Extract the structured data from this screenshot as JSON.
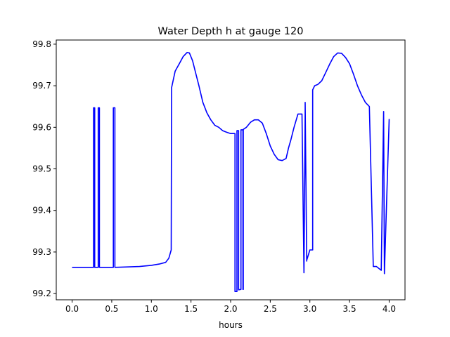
{
  "chart_data": {
    "type": "line",
    "title": "Water Depth h at gauge 120",
    "xlabel": "hours",
    "ylabel": "",
    "xlim": [
      -0.2,
      4.2
    ],
    "ylim": [
      99.185,
      99.81
    ],
    "xticks": [
      0.0,
      0.5,
      1.0,
      1.5,
      2.0,
      2.5,
      3.0,
      3.5,
      4.0
    ],
    "xtick_labels": [
      "0.0",
      "0.5",
      "1.0",
      "1.5",
      "2.0",
      "2.5",
      "3.0",
      "3.5",
      "4.0"
    ],
    "yticks": [
      99.2,
      99.3,
      99.4,
      99.5,
      99.6,
      99.7,
      99.8
    ],
    "ytick_labels": [
      "99.2",
      "99.3",
      "99.4",
      "99.5",
      "99.6",
      "99.7",
      "99.8"
    ],
    "grid": false,
    "series": [
      {
        "color": "#0000ff",
        "x": [
          0.0,
          0.27,
          0.27,
          0.285,
          0.285,
          0.33,
          0.33,
          0.345,
          0.345,
          0.52,
          0.52,
          0.54,
          0.54,
          0.7,
          0.85,
          1.0,
          1.1,
          1.18,
          1.22,
          1.25,
          1.255,
          1.3,
          1.35,
          1.4,
          1.45,
          1.48,
          1.52,
          1.56,
          1.6,
          1.65,
          1.7,
          1.75,
          1.8,
          1.85,
          1.9,
          1.95,
          2.0,
          2.04,
          2.055,
          2.055,
          2.08,
          2.08,
          2.1,
          2.1,
          2.13,
          2.13,
          2.155,
          2.155,
          2.16,
          2.16,
          2.2,
          2.25,
          2.3,
          2.35,
          2.4,
          2.45,
          2.5,
          2.55,
          2.6,
          2.65,
          2.7,
          2.73,
          2.76,
          2.8,
          2.85,
          2.9,
          2.925,
          2.925,
          2.94,
          2.94,
          2.96,
          2.96,
          3.0,
          3.035,
          3.035,
          3.06,
          3.1,
          3.15,
          3.2,
          3.25,
          3.3,
          3.35,
          3.4,
          3.45,
          3.5,
          3.55,
          3.6,
          3.65,
          3.7,
          3.75,
          3.8,
          3.84,
          3.84,
          3.9,
          3.9,
          3.93,
          3.93,
          3.94,
          3.94,
          4.0
        ],
        "y": [
          99.263,
          99.263,
          99.647,
          99.647,
          99.263,
          99.263,
          99.647,
          99.647,
          99.263,
          99.263,
          99.647,
          99.647,
          99.263,
          99.264,
          99.265,
          99.268,
          99.271,
          99.275,
          99.285,
          99.305,
          99.695,
          99.735,
          99.752,
          99.77,
          99.78,
          99.779,
          99.76,
          99.73,
          99.7,
          99.66,
          99.635,
          99.618,
          99.605,
          99.6,
          99.592,
          99.588,
          99.585,
          99.585,
          99.585,
          99.205,
          99.205,
          99.592,
          99.592,
          99.209,
          99.21,
          99.594,
          99.594,
          99.21,
          99.21,
          99.595,
          99.6,
          99.612,
          99.618,
          99.618,
          99.61,
          99.585,
          99.555,
          99.535,
          99.522,
          99.52,
          99.525,
          99.55,
          99.57,
          99.6,
          99.632,
          99.632,
          99.25,
          99.25,
          99.632,
          99.66,
          99.278,
          99.28,
          99.305,
          99.305,
          99.69,
          99.7,
          99.703,
          99.712,
          99.732,
          99.752,
          99.77,
          99.779,
          99.778,
          99.768,
          99.753,
          99.728,
          99.7,
          99.678,
          99.66,
          99.65,
          99.265,
          99.265,
          99.265,
          99.256,
          99.256,
          99.638,
          99.638,
          99.248,
          99.248,
          99.62
        ]
      }
    ]
  }
}
